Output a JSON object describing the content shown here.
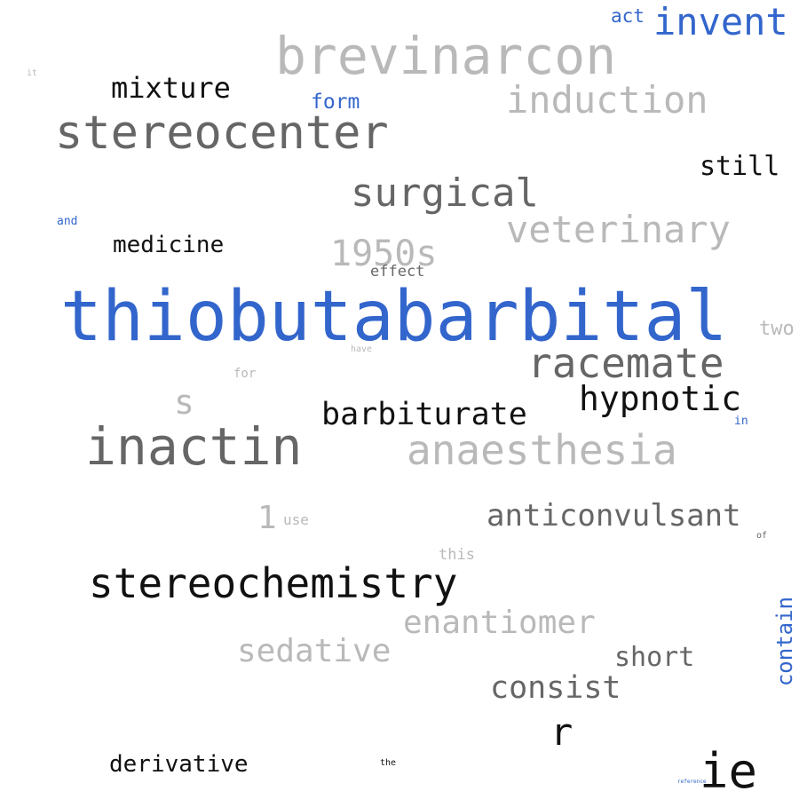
{
  "colors": {
    "blue": "#3366cc",
    "dark_gray": "#666666",
    "light_gray": "#b9b9b9",
    "black": "#111111"
  },
  "words": {
    "thiobutabarbital": "thiobutabarbital",
    "brevinarcon": "brevinarcon",
    "stereocenter": "stereocenter",
    "inactin": "inactin",
    "racemate": "racemate",
    "anaesthesia": "anaesthesia",
    "stereochemistry": "stereochemistry",
    "surgical": "surgical",
    "veterinary": "veterinary",
    "induction": "induction",
    "invent": "invent",
    "mixture": "mixture",
    "hypnotic": "hypnotic",
    "barbiturate": "barbiturate",
    "anticonvulsant": "anticonvulsant",
    "enantiomer": "enantiomer",
    "sedative": "sedative",
    "consist": "consist",
    "ie": "ie",
    "1950s": "1950s",
    "medicine": "medicine",
    "still": "still",
    "short": "short",
    "derivative": "derivative",
    "r": "r",
    "s": "s",
    "contain": "contain",
    "form": "form",
    "act": "act",
    "1": "1",
    "two": "two",
    "effect": "effect",
    "use": "use",
    "this": "this",
    "for": "for",
    "in": "in",
    "and": "and",
    "have": "have",
    "of": "of",
    "it": "it",
    "the": "the",
    "reference": "reference"
  }
}
